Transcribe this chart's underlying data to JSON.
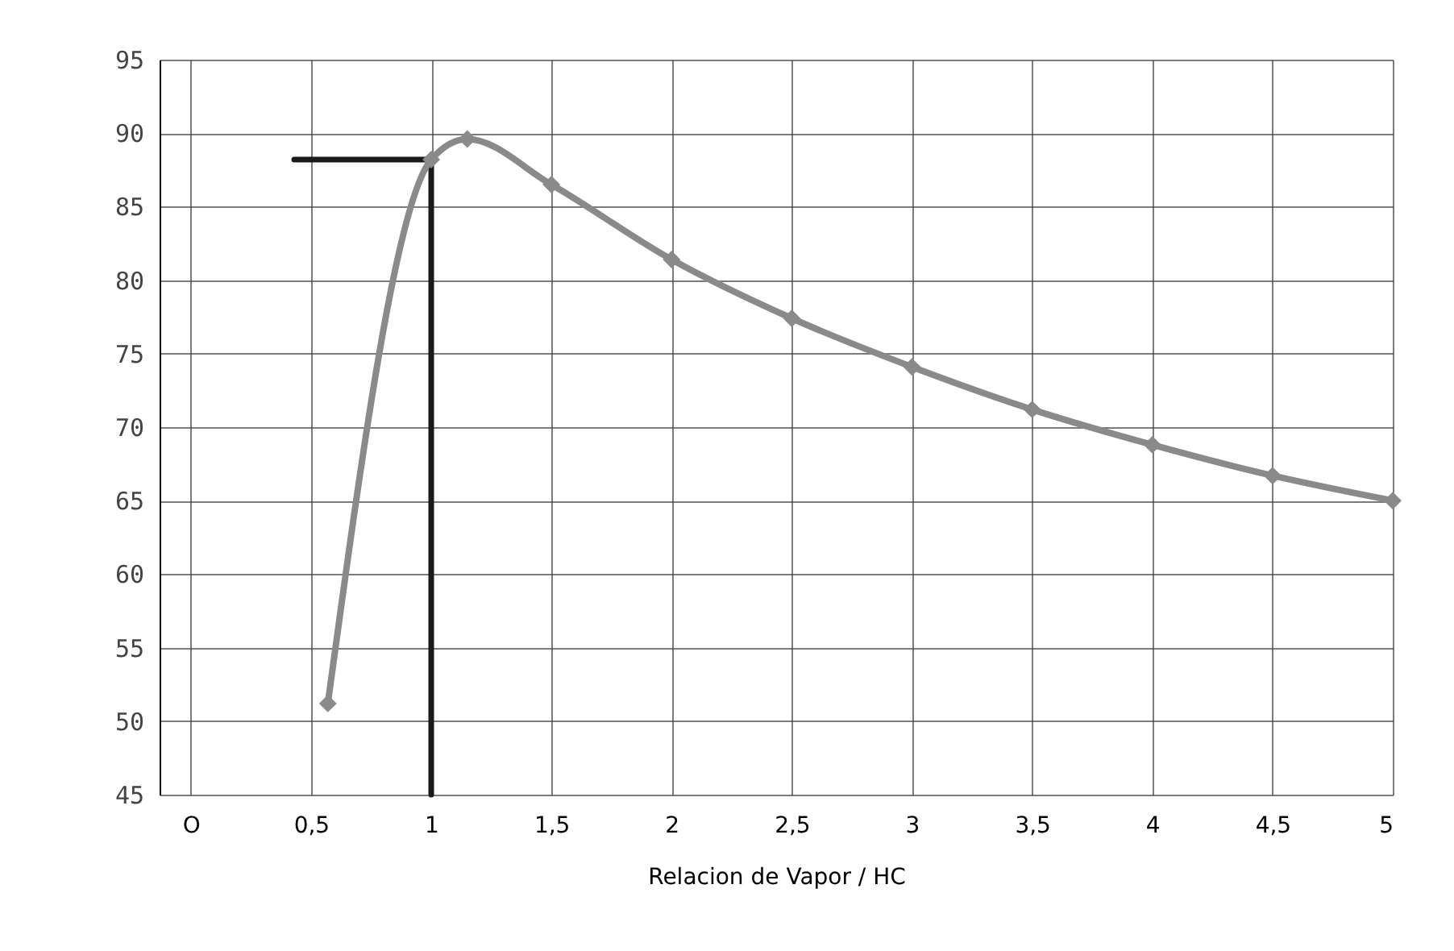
{
  "chart_data": {
    "type": "line",
    "xlabel": "Relacion  de Vapor  /  HC",
    "xlim": [
      -0.13,
      5
    ],
    "ylim": [
      45,
      95
    ],
    "xticks": [
      {
        "value": 0,
        "label": "O"
      },
      {
        "value": 0.5,
        "label": "0,5"
      },
      1,
      {
        "value": 1.5,
        "label": "1,5"
      },
      2,
      {
        "value": 2.5,
        "label": "2,5"
      },
      3,
      {
        "value": 3.5,
        "label": "3,5"
      },
      4,
      {
        "value": 4.5,
        "label": "4,5"
      },
      5
    ],
    "yticks": [
      45,
      50,
      55,
      60,
      65,
      70,
      75,
      80,
      85,
      90,
      95
    ],
    "grid": true,
    "marker": "diamond",
    "line_style": "solid",
    "series": [
      {
        "color": "#1a1a1a",
        "marker": "none",
        "x": [
          0.43,
          1,
          1
        ],
        "values": [
          88.2,
          88.2,
          45
        ]
      },
      {
        "color": "#8a8a8a",
        "x": [
          0.57,
          1,
          1.15,
          1.5,
          2,
          2.5,
          3,
          3.5,
          4,
          4.5,
          5
        ],
        "values": [
          51.2,
          88.2,
          89.6,
          86.5,
          81.4,
          77.4,
          74.1,
          71.2,
          68.8,
          66.7,
          65
        ]
      }
    ]
  }
}
